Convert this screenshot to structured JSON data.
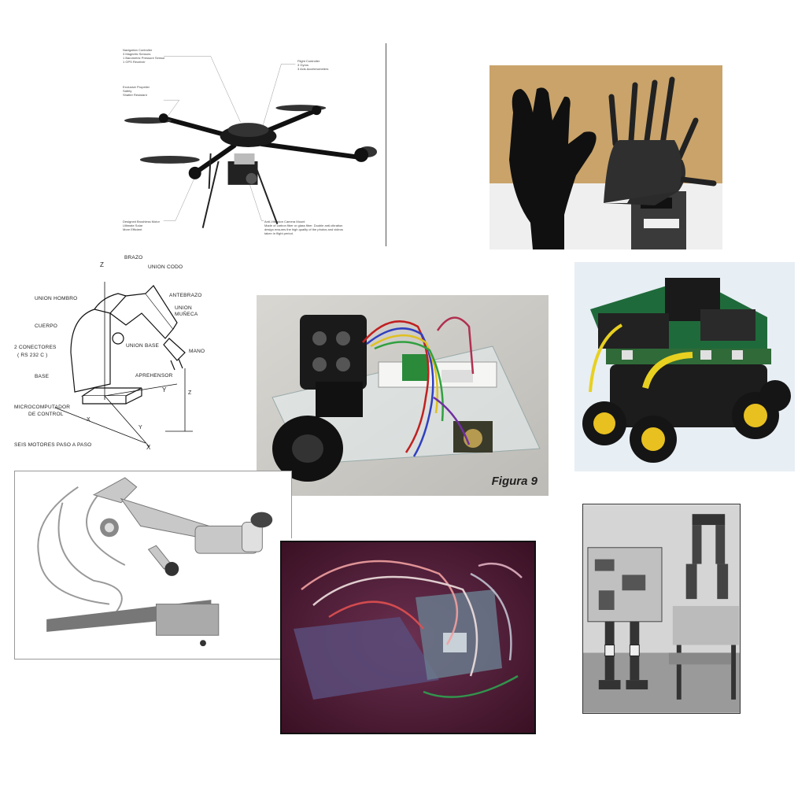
{
  "drone": {
    "callouts": [
      {
        "title": "Navigation Controller",
        "lines": [
          "3 Magnetic Sensors",
          "1 Barometric Pressure Sensor",
          "1 GPS Receiver"
        ]
      },
      {
        "title": "Exclusive Propeller",
        "lines": [
          "Safety",
          "Shatter Resistant"
        ]
      },
      {
        "title": "Designed Brushless Motor",
        "lines": [
          "Ultimate Solar",
          "More Efficient"
        ]
      },
      {
        "title": "Flight Controller",
        "lines": [
          "3 Gyros",
          "3 Axis Accelerometers"
        ]
      },
      {
        "title": "Anti-Vibration Camera Mount",
        "lines": [
          "Made of carbon fiber or glass fiber. Double anti-vibration",
          "design ensures the high quality of the photos and videos",
          "taken in flight period."
        ]
      }
    ]
  },
  "arm_diagram": {
    "labels": {
      "brazo": "BRAZO",
      "union_codo": "UNION CODO",
      "antebrazo": "ANTEBRAZO",
      "union_muneca_1": "UNION",
      "union_muneca_2": "MUÑECA",
      "union_hombro": "UNION HOMBRO",
      "cuerpo": "CUERPO",
      "conectores_1": "2 CONECTORES",
      "conectores_2": "( RS 232 C )",
      "union_base": "UNION BASE",
      "mano": "MANO",
      "base": "BASE",
      "aprehensor": "APREHENSOR",
      "micro_1": "MICROCOMPUTADOR",
      "micro_2": "DE CONTROL",
      "motores": "SEIS MOTORES PASO A PASO",
      "axis_z": "Z",
      "axis_y": "Y",
      "axis_x": "X",
      "axis_z2": "Z",
      "axis_x2": "X",
      "axis_y2": "Y"
    }
  },
  "car": {
    "caption": "Figura 9"
  },
  "colors": {
    "hand_bg": "#c9a36a",
    "lego_board": "#1f6a3a",
    "lego_wheel": "#e8c020",
    "arduino_bg": "#4a1b2e"
  }
}
